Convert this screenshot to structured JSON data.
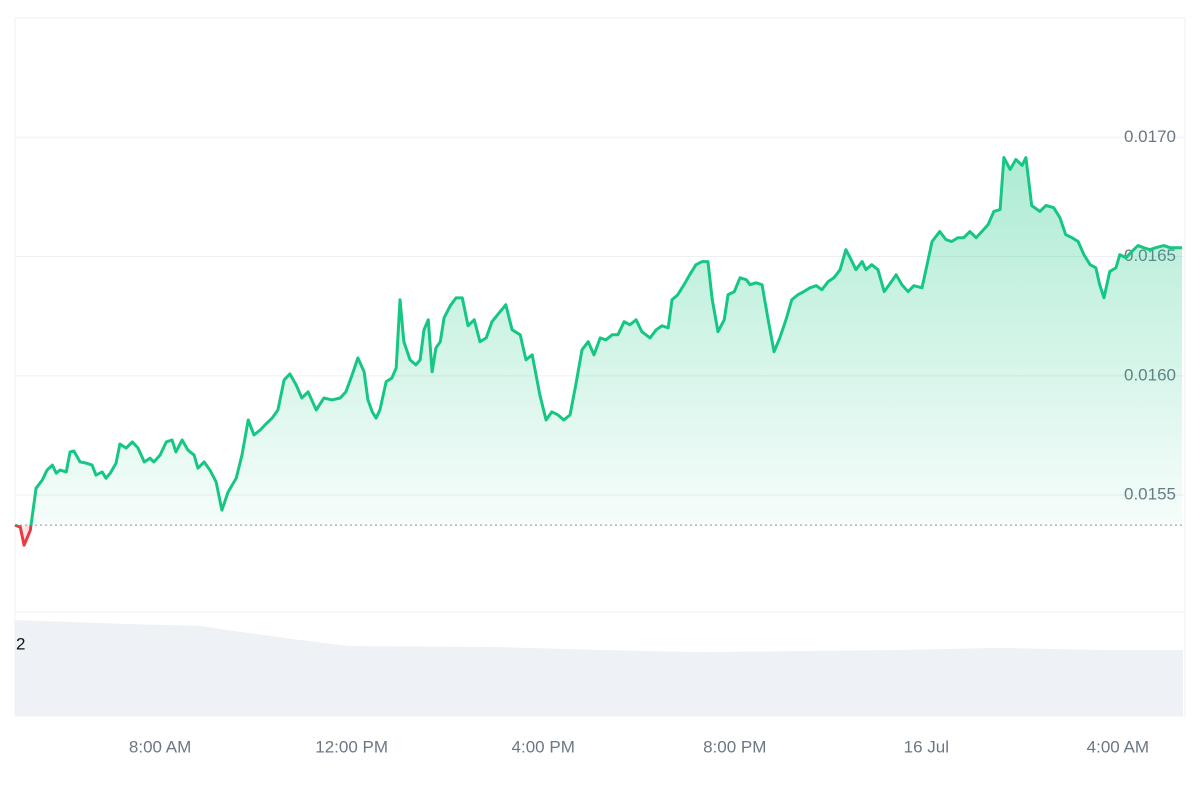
{
  "chart_data": {
    "type": "line",
    "x": [
      4.97,
      5.08,
      5.16,
      5.29,
      5.41,
      5.54,
      5.64,
      5.75,
      5.83,
      5.91,
      6.04,
      6.12,
      6.2,
      6.33,
      6.46,
      6.58,
      6.66,
      6.79,
      6.87,
      6.96,
      7.08,
      7.16,
      7.29,
      7.42,
      7.54,
      7.67,
      7.79,
      7.87,
      8.0,
      8.13,
      8.25,
      8.33,
      8.46,
      8.58,
      8.71,
      8.79,
      8.92,
      9.04,
      9.17,
      9.29,
      9.42,
      9.59,
      9.71,
      9.84,
      9.96,
      10.09,
      10.21,
      10.34,
      10.46,
      10.59,
      10.71,
      10.84,
      10.96,
      11.09,
      11.26,
      11.42,
      11.59,
      11.76,
      11.88,
      12.01,
      12.13,
      12.26,
      12.34,
      12.43,
      12.51,
      12.59,
      12.72,
      12.84,
      12.93,
      13.01,
      13.09,
      13.22,
      13.34,
      13.43,
      13.51,
      13.6,
      13.68,
      13.76,
      13.85,
      13.93,
      14.06,
      14.18,
      14.31,
      14.43,
      14.56,
      14.68,
      14.81,
      14.93,
      15.1,
      15.22,
      15.35,
      15.52,
      15.64,
      15.77,
      15.93,
      16.06,
      16.18,
      16.31,
      16.43,
      16.56,
      16.68,
      16.81,
      16.94,
      17.06,
      17.19,
      17.31,
      17.44,
      17.56,
      17.69,
      17.81,
      17.94,
      18.06,
      18.23,
      18.36,
      18.48,
      18.61,
      18.69,
      18.81,
      18.94,
      19.06,
      19.19,
      19.32,
      19.44,
      19.53,
      19.65,
      19.78,
      19.86,
      19.99,
      20.11,
      20.24,
      20.32,
      20.44,
      20.57,
      20.69,
      20.82,
      20.94,
      21.07,
      21.19,
      21.32,
      21.44,
      21.57,
      21.7,
      21.82,
      21.95,
      22.07,
      22.2,
      22.32,
      22.41,
      22.53,
      22.66,
      22.74,
      22.86,
      22.99,
      23.12,
      23.24,
      23.37,
      23.49,
      23.62,
      23.74,
      23.91,
      24.03,
      24.12,
      24.28,
      24.41,
      24.53,
      24.66,
      24.78,
      24.91,
      25.04,
      25.16,
      25.29,
      25.41,
      25.54,
      25.62,
      25.75,
      25.87,
      26.0,
      26.08,
      26.2,
      26.37,
      26.5,
      26.66,
      26.79,
      26.91,
      27.04,
      27.17,
      27.29,
      27.42,
      27.54,
      27.62,
      27.71,
      27.83,
      27.96,
      28.04,
      28.17,
      28.29,
      28.42,
      28.54,
      28.67,
      28.79,
      28.96,
      29.09,
      29.21,
      29.34
    ],
    "series": [
      {
        "color": "#16c784",
        "negative_color": "#ea3943",
        "values": [
          0.015374,
          0.015366,
          0.01529,
          0.015353,
          0.015529,
          0.015563,
          0.015605,
          0.015626,
          0.015592,
          0.015605,
          0.015597,
          0.015681,
          0.015685,
          0.015639,
          0.015634,
          0.015626,
          0.015584,
          0.015597,
          0.015571,
          0.015592,
          0.015634,
          0.015714,
          0.015697,
          0.015723,
          0.015697,
          0.015639,
          0.015655,
          0.015639,
          0.015668,
          0.015723,
          0.015731,
          0.015681,
          0.015731,
          0.015689,
          0.015668,
          0.015613,
          0.015639,
          0.015605,
          0.015555,
          0.015437,
          0.015513,
          0.015571,
          0.015668,
          0.015815,
          0.015752,
          0.015773,
          0.015798,
          0.015823,
          0.015857,
          0.015983,
          0.016008,
          0.015962,
          0.015907,
          0.015933,
          0.015857,
          0.015907,
          0.015899,
          0.015907,
          0.015933,
          0.016004,
          0.016075,
          0.016017,
          0.015899,
          0.015849,
          0.015823,
          0.015857,
          0.015975,
          0.015991,
          0.016033,
          0.016319,
          0.016143,
          0.016067,
          0.016046,
          0.016067,
          0.016193,
          0.016235,
          0.016017,
          0.016117,
          0.016143,
          0.016243,
          0.016294,
          0.016327,
          0.016327,
          0.01621,
          0.016235,
          0.016143,
          0.016159,
          0.016227,
          0.016269,
          0.016298,
          0.016193,
          0.016172,
          0.016067,
          0.016088,
          0.01592,
          0.015815,
          0.015849,
          0.015836,
          0.015815,
          0.015836,
          0.015962,
          0.016109,
          0.016143,
          0.016088,
          0.016159,
          0.016151,
          0.016172,
          0.016172,
          0.016227,
          0.016214,
          0.016235,
          0.016185,
          0.016159,
          0.016193,
          0.01621,
          0.016201,
          0.016319,
          0.01634,
          0.016382,
          0.016424,
          0.016466,
          0.016479,
          0.016479,
          0.016319,
          0.016185,
          0.016235,
          0.01634,
          0.016353,
          0.016411,
          0.016403,
          0.016382,
          0.01639,
          0.016382,
          0.016243,
          0.016101,
          0.016159,
          0.016235,
          0.016319,
          0.01634,
          0.016353,
          0.016369,
          0.016378,
          0.016361,
          0.016395,
          0.016411,
          0.016445,
          0.016529,
          0.016495,
          0.016445,
          0.016479,
          0.016445,
          0.016466,
          0.016445,
          0.016353,
          0.016386,
          0.016424,
          0.016382,
          0.016353,
          0.016378,
          0.016369,
          0.016479,
          0.016563,
          0.016605,
          0.016571,
          0.016563,
          0.016579,
          0.016579,
          0.016605,
          0.016579,
          0.016605,
          0.016634,
          0.016689,
          0.016697,
          0.016915,
          0.016865,
          0.016907,
          0.016882,
          0.016915,
          0.016714,
          0.016689,
          0.016714,
          0.016705,
          0.016663,
          0.016592,
          0.016579,
          0.016563,
          0.016508,
          0.016466,
          0.016453,
          0.016382,
          0.016327,
          0.016437,
          0.016453,
          0.016508,
          0.016495,
          0.016521,
          0.016546,
          0.016537,
          0.016529,
          0.016537,
          0.016546,
          0.016537,
          0.016537,
          0.016537
        ]
      }
    ],
    "reference_line": 0.015374,
    "xlim": [
      4.97,
      29.36
    ],
    "xticks": [
      {
        "value": 8,
        "label": "8:00 AM"
      },
      {
        "value": 12,
        "label": "12:00 PM"
      },
      {
        "value": 16,
        "label": "4:00 PM"
      },
      {
        "value": 20,
        "label": "8:00 PM"
      },
      {
        "value": 24,
        "label": "16 Jul"
      },
      {
        "value": 28,
        "label": "4:00 AM"
      }
    ],
    "ylim": [
      0.01501,
      0.0175
    ],
    "yticks": [
      {
        "value": 0.0155,
        "label": "0.0155"
      },
      {
        "value": 0.016,
        "label": "0.0160"
      },
      {
        "value": 0.0165,
        "label": "0.0165"
      },
      {
        "value": 0.017,
        "label": "0.0170"
      }
    ],
    "grid": true,
    "volume": {
      "axis": "y2",
      "color": "#eef1f5",
      "x": [
        4.97,
        7.37,
        8.83,
        9.67,
        10.92,
        11.97,
        15.1,
        17.19,
        19.27,
        21.36,
        23.45,
        25.54,
        27.62,
        29.36
      ],
      "values": [
        2.7,
        2.59,
        2.54,
        2.37,
        2.14,
        1.97,
        1.94,
        1.86,
        1.8,
        1.83,
        1.86,
        1.92,
        1.86,
        1.86
      ]
    },
    "y2lim": [
      0,
      2.93
    ],
    "y2ticks": [
      2
    ]
  }
}
